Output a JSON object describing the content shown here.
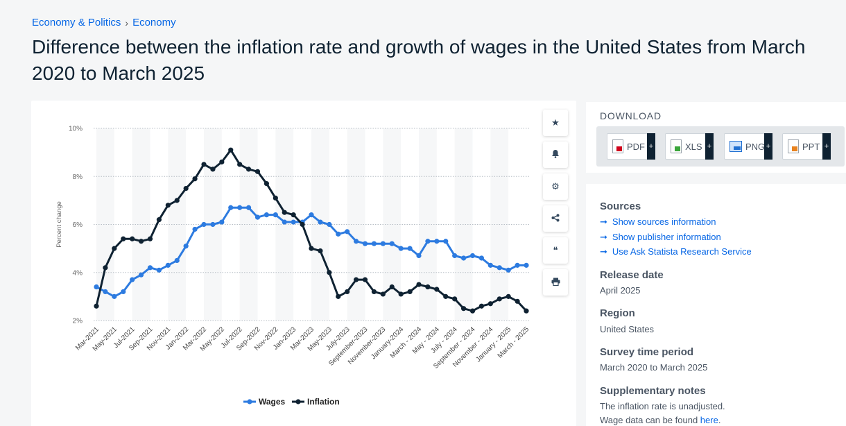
{
  "breadcrumb": {
    "item1": "Economy & Politics",
    "separator": "›",
    "item2": "Economy"
  },
  "page_title": "Difference between the inflation rate and growth of wages in the United States from March 2020 to March 2025",
  "toolbar": {
    "icons": [
      "star-icon",
      "bell-icon",
      "gear-icon",
      "share-icon",
      "quote-icon",
      "print-icon"
    ],
    "glyphs": [
      "★",
      "🔔",
      "⚙",
      "⋖",
      "❝",
      "⎙"
    ]
  },
  "download": {
    "title": "DOWNLOAD",
    "buttons": [
      {
        "label": "PDF",
        "color": "#d0021b"
      },
      {
        "label": "XLS",
        "color": "#3aa53a"
      },
      {
        "label": "PNG",
        "color": "#1f6fd1"
      },
      {
        "label": "PPT",
        "color": "#e8821e"
      }
    ],
    "plus": "+"
  },
  "info": {
    "sources_heading": "Sources",
    "links": [
      "Show sources information",
      "Show publisher information",
      "Use Ask Statista Research Service"
    ],
    "arrow": "➞",
    "release_heading": "Release date",
    "release_value": "April 2025",
    "region_heading": "Region",
    "region_value": "United States",
    "period_heading": "Survey time period",
    "period_value": "March 2020 to March 2025",
    "notes_heading": "Supplementary notes",
    "notes_line1": "The inflation rate is unadjusted.",
    "notes_line2_prefix": "Wage data can be found ",
    "notes_line2_link": "here",
    "notes_line2_suffix": "."
  },
  "chart_data": {
    "type": "line",
    "ylabel": "Percent change",
    "ylim": [
      2,
      10
    ],
    "yticks": [
      "2%",
      "4%",
      "6%",
      "8%",
      "10%"
    ],
    "ytick_values": [
      2,
      4,
      6,
      8,
      10
    ],
    "grid": true,
    "legend_position": "bottom-center",
    "x_tick_labels": [
      "Mar-2021",
      "May-2021",
      "Jul-2021",
      "Sep-2021",
      "Nov-2021",
      "Jan-2022",
      "Mar-2022",
      "May-2022",
      "Jul-2022",
      "Sep-2022",
      "Nov-2022",
      "Jan-2023",
      "Mar-2023",
      "May-2023",
      "July-2023",
      "September-2023",
      "November-2023",
      "January-2024",
      "March - 2024",
      "May - 2024",
      "July - 2024",
      "September - 2024",
      "November - 2024",
      "January - 2025",
      "March - 2025"
    ],
    "series": [
      {
        "name": "Wages",
        "color": "#2d7be0",
        "values": [
          3.4,
          3.2,
          3.0,
          3.2,
          3.7,
          3.9,
          4.2,
          4.1,
          4.3,
          4.5,
          5.1,
          5.8,
          6.0,
          6.0,
          6.1,
          6.7,
          6.7,
          6.7,
          6.3,
          6.4,
          6.4,
          6.1,
          6.1,
          6.1,
          6.4,
          6.1,
          6.0,
          5.6,
          5.7,
          5.3,
          5.2,
          5.2,
          5.2,
          5.2,
          5.0,
          5.0,
          4.7,
          5.3,
          5.3,
          5.3,
          4.7,
          4.6,
          4.7,
          4.6,
          4.3,
          4.2,
          4.1,
          4.3,
          4.3
        ]
      },
      {
        "name": "Inflation",
        "color": "#0f2232",
        "values": [
          2.6,
          4.2,
          5.0,
          5.4,
          5.4,
          5.3,
          5.4,
          6.2,
          6.8,
          7.0,
          7.5,
          7.9,
          8.5,
          8.3,
          8.6,
          9.1,
          8.5,
          8.3,
          8.2,
          7.7,
          7.1,
          6.5,
          6.4,
          6.0,
          5.0,
          4.9,
          4.0,
          3.0,
          3.2,
          3.7,
          3.7,
          3.2,
          3.1,
          3.4,
          3.1,
          3.2,
          3.5,
          3.4,
          3.3,
          3.0,
          2.9,
          2.5,
          2.4,
          2.6,
          2.7,
          2.9,
          3.0,
          2.8,
          2.4
        ]
      }
    ]
  }
}
